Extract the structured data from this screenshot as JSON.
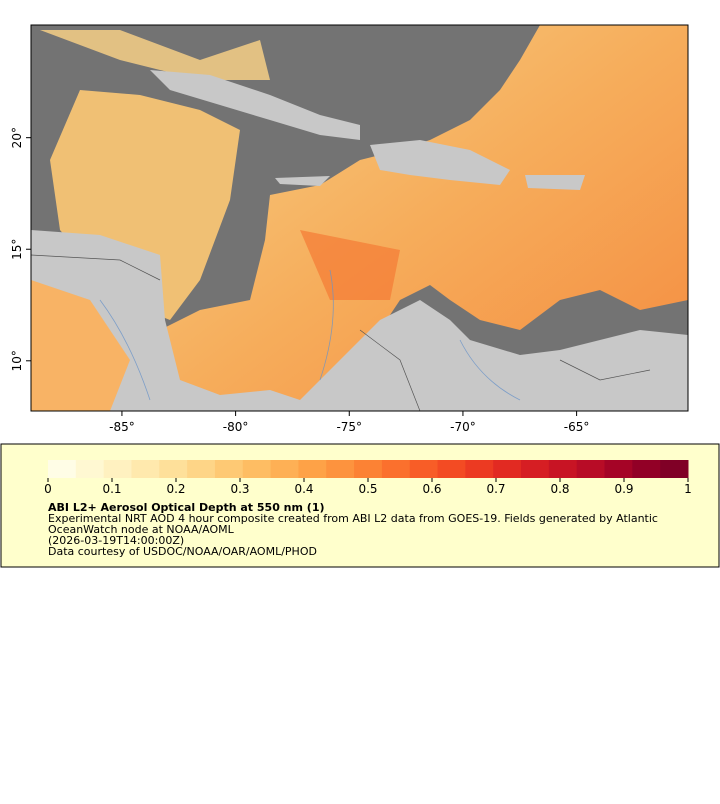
{
  "map": {
    "xlim": [
      -89,
      -60.1
    ],
    "ylim": [
      7.75,
      25.05
    ],
    "xticks": [
      {
        "value": -85,
        "label": "-85°"
      },
      {
        "value": -80,
        "label": "-80°"
      },
      {
        "value": -75,
        "label": "-75°"
      },
      {
        "value": -70,
        "label": "-70°"
      },
      {
        "value": -65,
        "label": "-65°"
      }
    ],
    "yticks": [
      {
        "value": 10,
        "label": "10°"
      },
      {
        "value": 15,
        "label": "15°"
      },
      {
        "value": 20,
        "label": "20°"
      }
    ]
  },
  "legend": {
    "range": [
      0,
      1
    ],
    "ticks": [
      0,
      0.1,
      0.2,
      0.3,
      0.4,
      0.5,
      0.6,
      0.7,
      0.8,
      0.9,
      1
    ],
    "colormap": [
      "#fffde6",
      "#fff8d2",
      "#fff1c0",
      "#ffe9ad",
      "#fee09a",
      "#fed587",
      "#fec974",
      "#febd63",
      "#feb055",
      "#fea247",
      "#fd933e",
      "#fc8234",
      "#fb702d",
      "#f85d27",
      "#f34b23",
      "#ec3a22",
      "#e22a22",
      "#d61e23",
      "#c81424",
      "#b80c26",
      "#a50426",
      "#920026",
      "#800026"
    ],
    "title": "ABI L2+ Aerosol Optical Depth at 550 nm (1)",
    "description": [
      "Experimental NRT AOD 4 hour composite created from ABI L2 data from GOES-19. Fields generated by Atlantic",
      "OceanWatch node at NOAA/AOML",
      "(2026-03-19T14:00:00Z)",
      "Data courtesy of USDOC/NOAA/OAR/AOML/PHOD"
    ]
  }
}
